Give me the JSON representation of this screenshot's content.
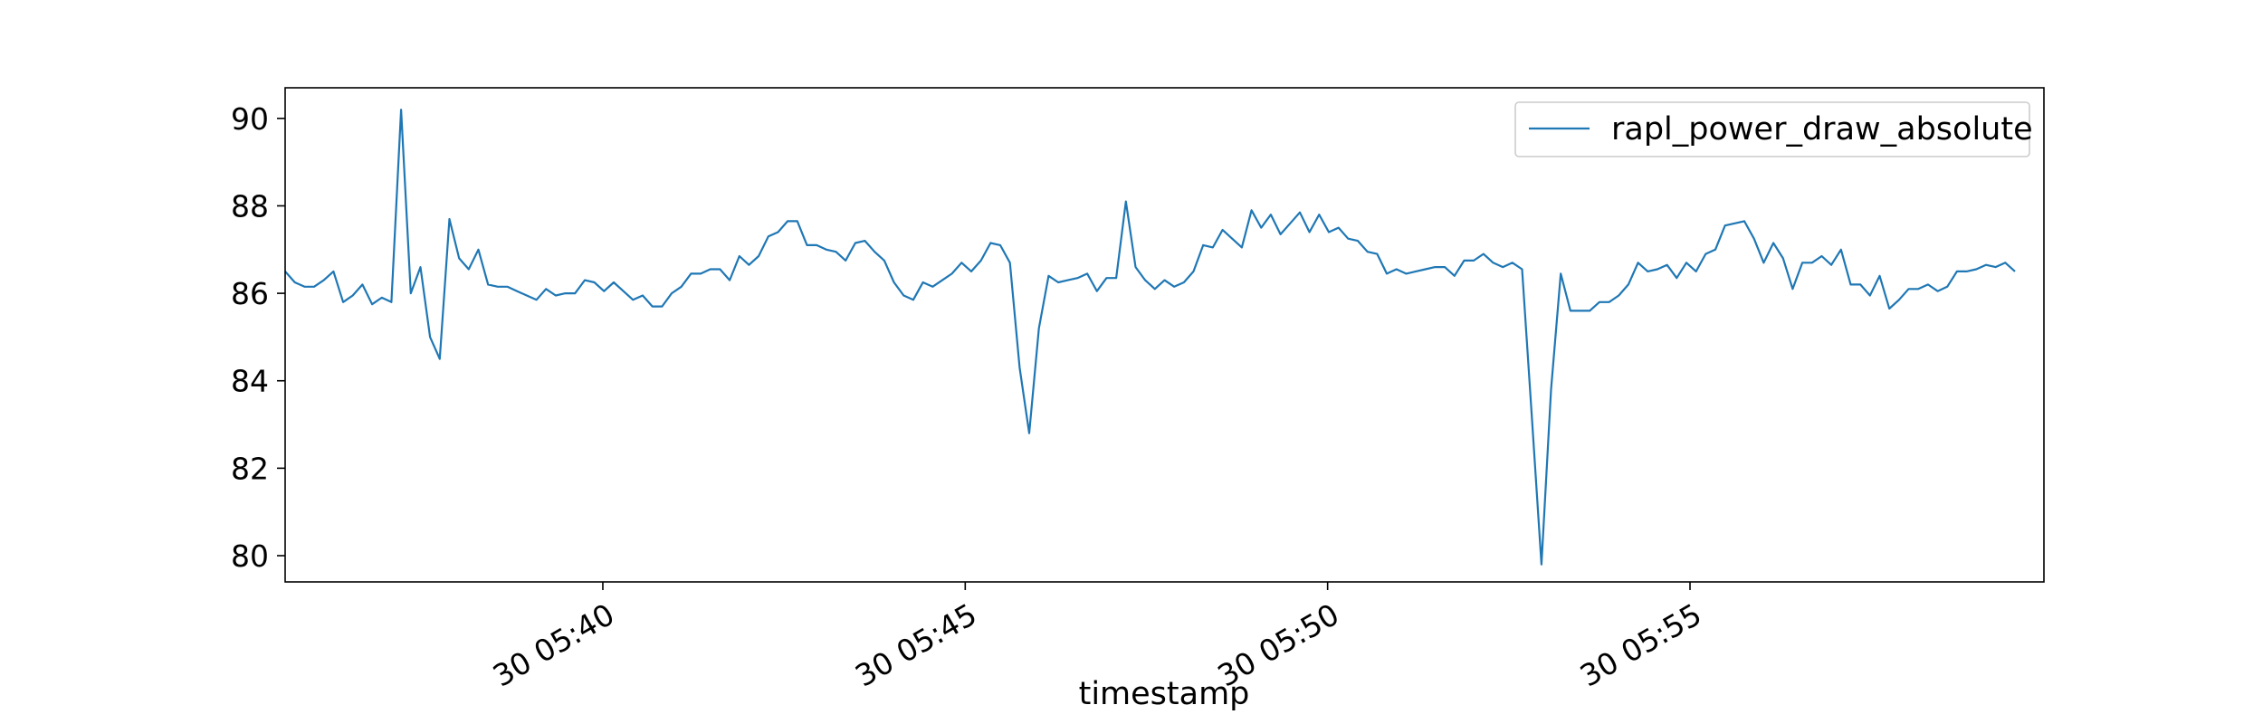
{
  "chart_data": {
    "type": "line",
    "title": "",
    "xlabel": "timestamp",
    "ylabel": "",
    "x_unit": "minutes",
    "xlim": [
      "30 05:35:37",
      "30 05:59:53"
    ],
    "ylim": [
      79.4,
      90.7
    ],
    "x_ticks": [
      {
        "value": "30 05:40:00",
        "label": "30 05:40"
      },
      {
        "value": "30 05:45:00",
        "label": "30 05:45"
      },
      {
        "value": "30 05:50:00",
        "label": "30 05:50"
      },
      {
        "value": "30 05:55:00",
        "label": "30 05:55"
      }
    ],
    "y_ticks": [
      80,
      82,
      84,
      86,
      88,
      90
    ],
    "grid": false,
    "legend": {
      "position": "top-right"
    },
    "series": [
      {
        "name": "rapl_power_draw_absolute",
        "color": "#1f77b4",
        "points": [
          [
            "30 05:35:37",
            86.5
          ],
          [
            "30 05:35:45",
            86.25
          ],
          [
            "30 05:35:53",
            86.15
          ],
          [
            "30 05:36:01",
            86.15
          ],
          [
            "30 05:36:09",
            86.3
          ],
          [
            "30 05:36:17",
            86.5
          ],
          [
            "30 05:36:25",
            85.8
          ],
          [
            "30 05:36:33",
            85.95
          ],
          [
            "30 05:36:41",
            86.2
          ],
          [
            "30 05:36:49",
            85.75
          ],
          [
            "30 05:36:57",
            85.9
          ],
          [
            "30 05:37:05",
            85.8
          ],
          [
            "30 05:37:13",
            90.2
          ],
          [
            "30 05:37:21",
            86.0
          ],
          [
            "30 05:37:29",
            86.6
          ],
          [
            "30 05:37:37",
            85.0
          ],
          [
            "30 05:37:45",
            84.5
          ],
          [
            "30 05:37:53",
            87.7
          ],
          [
            "30 05:38:01",
            86.8
          ],
          [
            "30 05:38:09",
            86.55
          ],
          [
            "30 05:38:17",
            87.0
          ],
          [
            "30 05:38:25",
            86.2
          ],
          [
            "30 05:38:33",
            86.15
          ],
          [
            "30 05:38:41",
            86.15
          ],
          [
            "30 05:38:49",
            86.05
          ],
          [
            "30 05:38:57",
            85.95
          ],
          [
            "30 05:39:05",
            85.85
          ],
          [
            "30 05:39:13",
            86.1
          ],
          [
            "30 05:39:21",
            85.95
          ],
          [
            "30 05:39:29",
            86.0
          ],
          [
            "30 05:39:37",
            86.0
          ],
          [
            "30 05:39:45",
            86.3
          ],
          [
            "30 05:39:53",
            86.25
          ],
          [
            "30 05:40:01",
            86.05
          ],
          [
            "30 05:40:09",
            86.25
          ],
          [
            "30 05:40:17",
            86.05
          ],
          [
            "30 05:40:25",
            85.85
          ],
          [
            "30 05:40:33",
            85.95
          ],
          [
            "30 05:40:41",
            85.7
          ],
          [
            "30 05:40:49",
            85.7
          ],
          [
            "30 05:40:57",
            86.0
          ],
          [
            "30 05:41:05",
            86.15
          ],
          [
            "30 05:41:13",
            86.45
          ],
          [
            "30 05:41:21",
            86.45
          ],
          [
            "30 05:41:29",
            86.55
          ],
          [
            "30 05:41:37",
            86.55
          ],
          [
            "30 05:41:45",
            86.3
          ],
          [
            "30 05:41:53",
            86.85
          ],
          [
            "30 05:42:01",
            86.65
          ],
          [
            "30 05:42:09",
            86.85
          ],
          [
            "30 05:42:17",
            87.3
          ],
          [
            "30 05:42:25",
            87.4
          ],
          [
            "30 05:42:33",
            87.65
          ],
          [
            "30 05:42:41",
            87.65
          ],
          [
            "30 05:42:49",
            87.1
          ],
          [
            "30 05:42:57",
            87.1
          ],
          [
            "30 05:43:05",
            87.0
          ],
          [
            "30 05:43:13",
            86.95
          ],
          [
            "30 05:43:21",
            86.75
          ],
          [
            "30 05:43:29",
            87.15
          ],
          [
            "30 05:43:37",
            87.2
          ],
          [
            "30 05:43:45",
            86.95
          ],
          [
            "30 05:43:53",
            86.75
          ],
          [
            "30 05:44:01",
            86.25
          ],
          [
            "30 05:44:09",
            85.95
          ],
          [
            "30 05:44:17",
            85.85
          ],
          [
            "30 05:44:25",
            86.25
          ],
          [
            "30 05:44:33",
            86.15
          ],
          [
            "30 05:44:41",
            86.3
          ],
          [
            "30 05:44:49",
            86.45
          ],
          [
            "30 05:44:57",
            86.7
          ],
          [
            "30 05:45:05",
            86.5
          ],
          [
            "30 05:45:13",
            86.75
          ],
          [
            "30 05:45:21",
            87.15
          ],
          [
            "30 05:45:29",
            87.1
          ],
          [
            "30 05:45:37",
            86.7
          ],
          [
            "30 05:45:45",
            84.3
          ],
          [
            "30 05:45:53",
            82.8
          ],
          [
            "30 05:46:01",
            85.2
          ],
          [
            "30 05:46:09",
            86.4
          ],
          [
            "30 05:46:17",
            86.25
          ],
          [
            "30 05:46:25",
            86.3
          ],
          [
            "30 05:46:33",
            86.35
          ],
          [
            "30 05:46:41",
            86.45
          ],
          [
            "30 05:46:49",
            86.05
          ],
          [
            "30 05:46:57",
            86.35
          ],
          [
            "30 05:47:05",
            86.35
          ],
          [
            "30 05:47:13",
            88.1
          ],
          [
            "30 05:47:21",
            86.6
          ],
          [
            "30 05:47:29",
            86.3
          ],
          [
            "30 05:47:37",
            86.1
          ],
          [
            "30 05:47:45",
            86.3
          ],
          [
            "30 05:47:53",
            86.15
          ],
          [
            "30 05:48:01",
            86.25
          ],
          [
            "30 05:48:09",
            86.5
          ],
          [
            "30 05:48:17",
            87.1
          ],
          [
            "30 05:48:25",
            87.05
          ],
          [
            "30 05:48:33",
            87.45
          ],
          [
            "30 05:48:41",
            87.25
          ],
          [
            "30 05:48:49",
            87.05
          ],
          [
            "30 05:48:57",
            87.9
          ],
          [
            "30 05:49:05",
            87.5
          ],
          [
            "30 05:49:13",
            87.8
          ],
          [
            "30 05:49:21",
            87.35
          ],
          [
            "30 05:49:29",
            87.6
          ],
          [
            "30 05:49:37",
            87.85
          ],
          [
            "30 05:49:45",
            87.4
          ],
          [
            "30 05:49:53",
            87.8
          ],
          [
            "30 05:50:01",
            87.4
          ],
          [
            "30 05:50:09",
            87.5
          ],
          [
            "30 05:50:17",
            87.25
          ],
          [
            "30 05:50:25",
            87.2
          ],
          [
            "30 05:50:33",
            86.95
          ],
          [
            "30 05:50:41",
            86.9
          ],
          [
            "30 05:50:49",
            86.45
          ],
          [
            "30 05:50:57",
            86.55
          ],
          [
            "30 05:51:05",
            86.45
          ],
          [
            "30 05:51:13",
            86.5
          ],
          [
            "30 05:51:21",
            86.55
          ],
          [
            "30 05:51:29",
            86.6
          ],
          [
            "30 05:51:37",
            86.6
          ],
          [
            "30 05:51:45",
            86.4
          ],
          [
            "30 05:51:53",
            86.75
          ],
          [
            "30 05:52:01",
            86.75
          ],
          [
            "30 05:52:09",
            86.9
          ],
          [
            "30 05:52:17",
            86.7
          ],
          [
            "30 05:52:25",
            86.6
          ],
          [
            "30 05:52:33",
            86.7
          ],
          [
            "30 05:52:41",
            86.55
          ],
          [
            "30 05:52:49",
            83.2
          ],
          [
            "30 05:52:57",
            79.8
          ],
          [
            "30 05:53:05",
            83.8
          ],
          [
            "30 05:53:13",
            86.45
          ],
          [
            "30 05:53:21",
            85.6
          ],
          [
            "30 05:53:29",
            85.6
          ],
          [
            "30 05:53:37",
            85.6
          ],
          [
            "30 05:53:45",
            85.8
          ],
          [
            "30 05:53:53",
            85.8
          ],
          [
            "30 05:54:01",
            85.95
          ],
          [
            "30 05:54:09",
            86.2
          ],
          [
            "30 05:54:17",
            86.7
          ],
          [
            "30 05:54:25",
            86.5
          ],
          [
            "30 05:54:33",
            86.55
          ],
          [
            "30 05:54:41",
            86.65
          ],
          [
            "30 05:54:49",
            86.35
          ],
          [
            "30 05:54:57",
            86.7
          ],
          [
            "30 05:55:05",
            86.5
          ],
          [
            "30 05:55:13",
            86.9
          ],
          [
            "30 05:55:21",
            87.0
          ],
          [
            "30 05:55:29",
            87.55
          ],
          [
            "30 05:55:37",
            87.6
          ],
          [
            "30 05:55:45",
            87.65
          ],
          [
            "30 05:55:53",
            87.25
          ],
          [
            "30 05:56:01",
            86.7
          ],
          [
            "30 05:56:09",
            87.15
          ],
          [
            "30 05:56:17",
            86.8
          ],
          [
            "30 05:56:25",
            86.1
          ],
          [
            "30 05:56:33",
            86.7
          ],
          [
            "30 05:56:41",
            86.7
          ],
          [
            "30 05:56:49",
            86.85
          ],
          [
            "30 05:56:57",
            86.65
          ],
          [
            "30 05:57:05",
            87.0
          ],
          [
            "30 05:57:13",
            86.2
          ],
          [
            "30 05:57:21",
            86.2
          ],
          [
            "30 05:57:29",
            85.95
          ],
          [
            "30 05:57:37",
            86.4
          ],
          [
            "30 05:57:45",
            85.65
          ],
          [
            "30 05:57:53",
            85.85
          ],
          [
            "30 05:58:01",
            86.1
          ],
          [
            "30 05:58:09",
            86.1
          ],
          [
            "30 05:58:17",
            86.2
          ],
          [
            "30 05:58:25",
            86.05
          ],
          [
            "30 05:58:33",
            86.15
          ],
          [
            "30 05:58:41",
            86.5
          ],
          [
            "30 05:58:49",
            86.5
          ],
          [
            "30 05:58:57",
            86.55
          ],
          [
            "30 05:59:05",
            86.65
          ],
          [
            "30 05:59:13",
            86.6
          ],
          [
            "30 05:59:21",
            86.7
          ],
          [
            "30 05:59:29",
            86.5
          ]
        ]
      }
    ]
  }
}
